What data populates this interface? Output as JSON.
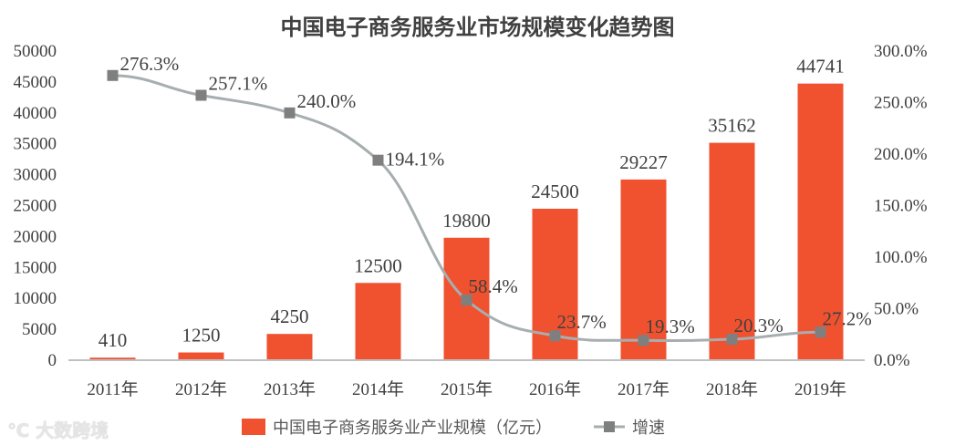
{
  "chart_data": {
    "type": "bar+line",
    "title": "中国电子商务服务业市场规模变化趋势图",
    "categories": [
      "2011年",
      "2012年",
      "2013年",
      "2014年",
      "2015年",
      "2016年",
      "2017年",
      "2018年",
      "2019年"
    ],
    "series": [
      {
        "name": "中国电子商务服务业产业规模（亿元）",
        "type": "bar",
        "axis": "left",
        "values": [
          410,
          1250,
          4250,
          12500,
          19800,
          24500,
          29227,
          35162,
          44741
        ],
        "labels": [
          "410",
          "1250",
          "4250",
          "12500",
          "19800",
          "24500",
          "29227",
          "35162",
          "44741"
        ],
        "color": "#F05230"
      },
      {
        "name": "增速",
        "type": "line",
        "axis": "right",
        "values": [
          276.3,
          257.1,
          240.0,
          194.1,
          58.4,
          23.7,
          19.3,
          20.3,
          27.2
        ],
        "labels": [
          "276.3%",
          "257.1%",
          "240.0%",
          "194.1%",
          "58.4%",
          "23.7%",
          "19.3%",
          "20.3%",
          "27.2%"
        ],
        "color": "#A6AEB0",
        "marker_color": "#7F7F7F"
      }
    ],
    "ylim_left": [
      0,
      50000
    ],
    "yticks_left": [
      "0",
      "5000",
      "10000",
      "15000",
      "20000",
      "25000",
      "30000",
      "35000",
      "40000",
      "45000",
      "50000"
    ],
    "ylim_right": [
      0,
      300
    ],
    "yticks_right": [
      "0.0%",
      "50.0%",
      "100.0%",
      "150.0%",
      "200.0%",
      "250.0%",
      "300.0%"
    ],
    "grid": false,
    "legend": "bottom"
  },
  "watermark": "大数跨境"
}
